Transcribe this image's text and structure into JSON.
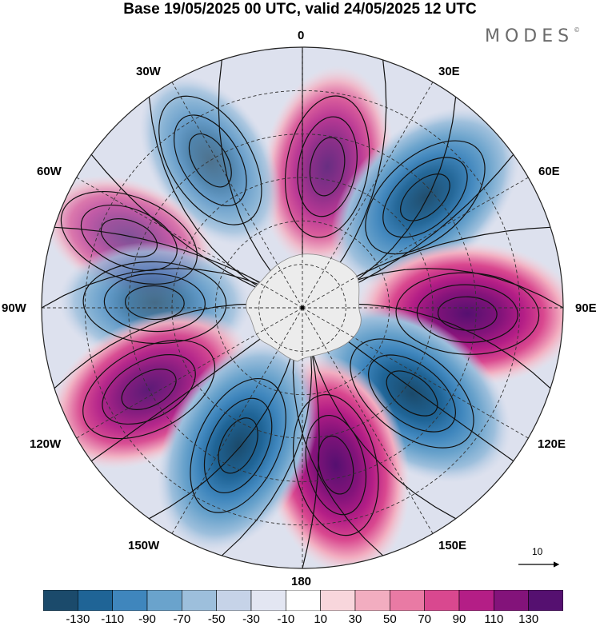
{
  "title": "Base 19/05/2025 00 UTC, valid 24/05/2025 12 UTC",
  "brand": "MODES",
  "brand_mark": "©",
  "longitude_labels": {
    "lon_0": "0",
    "lon_30e": "30E",
    "lon_60e": "60E",
    "lon_90e": "90E",
    "lon_120e": "120E",
    "lon_150e": "150E",
    "lon_180": "180",
    "lon_150w": "150W",
    "lon_120w": "120W",
    "lon_90w": "90W",
    "lon_60w": "60W",
    "lon_30w": "30W"
  },
  "reference_vector": {
    "value": "10"
  },
  "colorbar": {
    "colors": [
      "#1b4a6b",
      "#1f6496",
      "#3f86bd",
      "#6aa3cc",
      "#9dbfdc",
      "#c6d3e8",
      "#e3e6f2",
      "#ffffff",
      "#f8d6dc",
      "#f2adc0",
      "#e97aa4",
      "#d9488f",
      "#b41e86",
      "#83137a",
      "#551070"
    ],
    "tick_labels": [
      "-130",
      "-110",
      "-90",
      "-70",
      "-50",
      "-30",
      "-10",
      "10",
      "30",
      "50",
      "70",
      "90",
      "110",
      "130"
    ]
  },
  "anomaly_centers": [
    {
      "lon": 10,
      "colat": 33,
      "sign": "positive",
      "strength": 95
    },
    {
      "lon": -32,
      "colat": 40,
      "sign": "negative",
      "strength": 60
    },
    {
      "lon": 48,
      "colat": 38,
      "sign": "negative",
      "strength": 130
    },
    {
      "lon": -68,
      "colat": 43,
      "sign": "positive",
      "strength": 45
    },
    {
      "lon": -88,
      "colat": 34,
      "sign": "negative",
      "strength": 70
    },
    {
      "lon": 92,
      "colat": 38,
      "sign": "positive",
      "strength": 140
    },
    {
      "lon": 128,
      "colat": 32,
      "sign": "negative",
      "strength": 140
    },
    {
      "lon": -118,
      "colat": 40,
      "sign": "positive",
      "strength": 125
    },
    {
      "lon": 168,
      "colat": 37,
      "sign": "positive",
      "strength": 140
    },
    {
      "lon": -155,
      "colat": 35,
      "sign": "negative",
      "strength": 140
    }
  ]
}
